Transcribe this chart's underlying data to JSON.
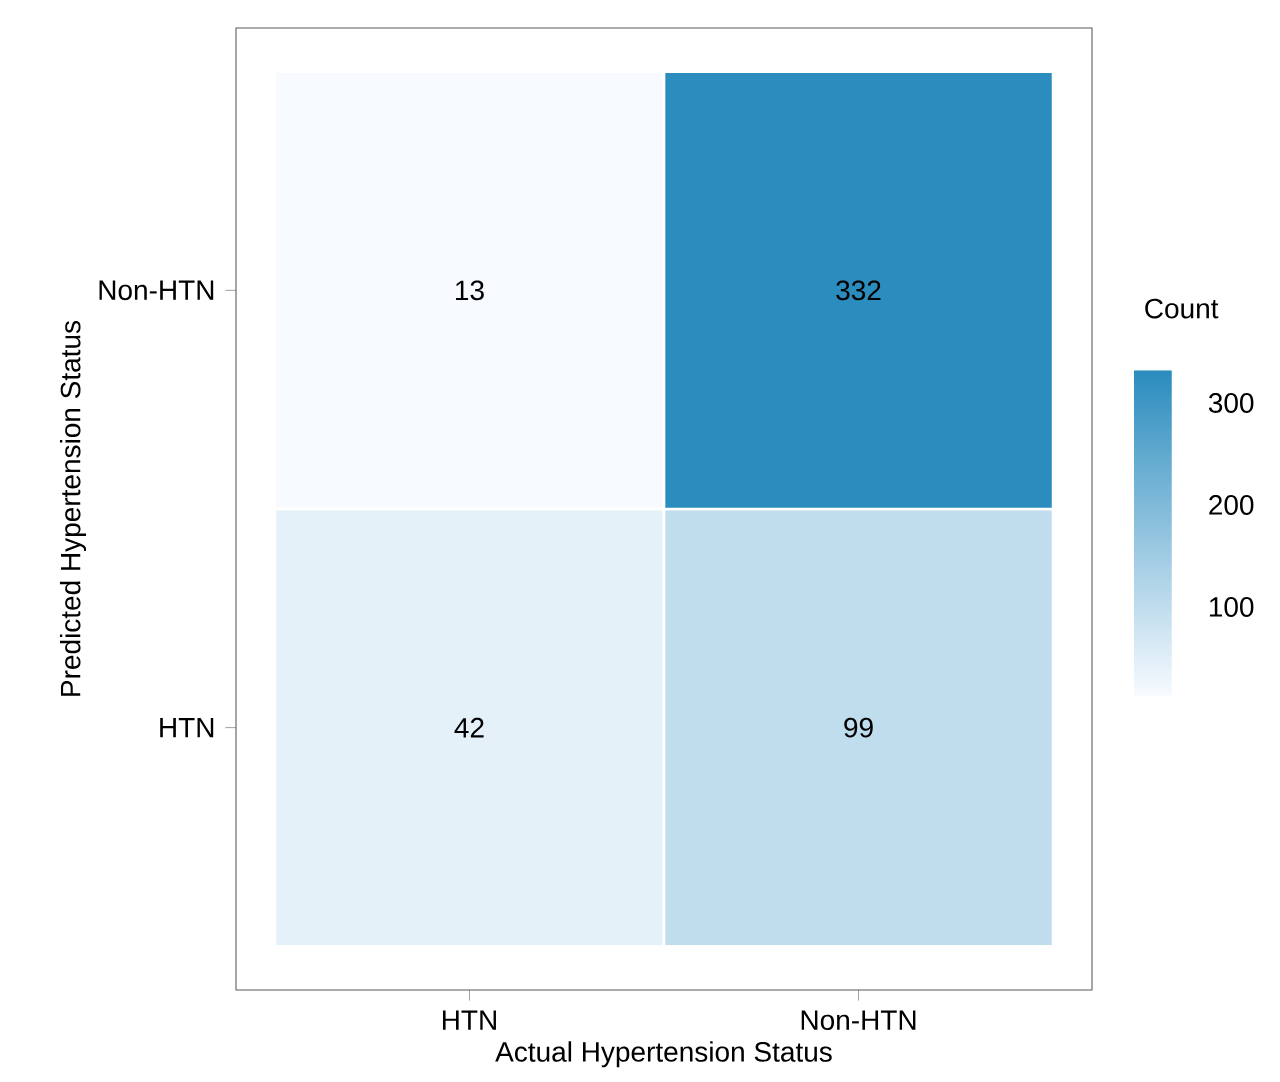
{
  "chart_data": {
    "type": "heatmap",
    "xlabel": "Actual Hypertension Status",
    "ylabel": "Predicted Hypertension Status",
    "clabel": "Count",
    "categories": [
      "HTN",
      "Non-HTN"
    ],
    "y_categories": [
      "Non-HTN",
      "HTN"
    ],
    "cells": [
      [
        13,
        332
      ],
      [
        42,
        99
      ]
    ],
    "clim": [
      13,
      332
    ],
    "cticks": [
      100,
      200,
      300
    ],
    "data_labels": true
  }
}
